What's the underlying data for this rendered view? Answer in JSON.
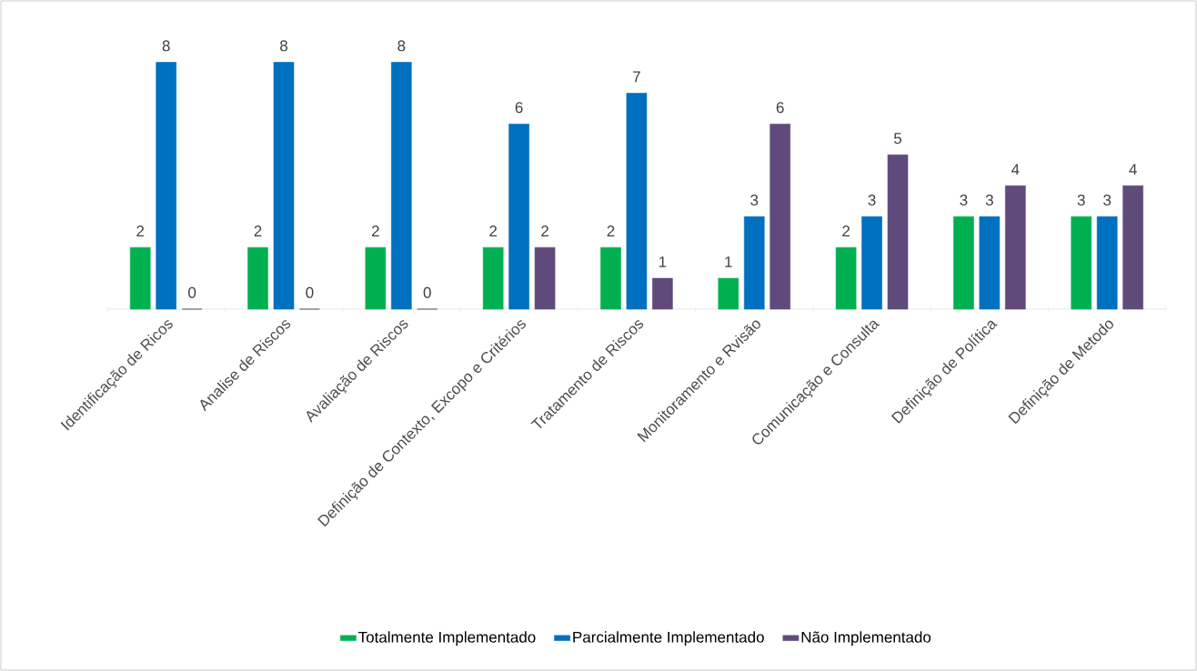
{
  "chart_data": {
    "type": "bar",
    "categories": [
      "Identificação de Ricos",
      "Analise de Riscos",
      "Avaliação de Riscos",
      "Definição de Contexto, Excopo e Critérios",
      "Tratamento de Riscos",
      "Monitoramento e Rvisão",
      "Comunicação e Consulta",
      "Definição de Política",
      "Definição de Metodo"
    ],
    "series": [
      {
        "name": "Totalmente Implementado",
        "color": "#00b050",
        "values": [
          2,
          2,
          2,
          2,
          2,
          1,
          2,
          3,
          3
        ]
      },
      {
        "name": "Parcialmente Implementado",
        "color": "#0070c0",
        "values": [
          8,
          8,
          8,
          6,
          7,
          3,
          3,
          3,
          3
        ]
      },
      {
        "name": "Não Implementado",
        "color": "#604a7b",
        "values": [
          0,
          0,
          0,
          2,
          1,
          6,
          5,
          4,
          4
        ]
      }
    ],
    "data_labels": true,
    "legend": "bottom"
  }
}
